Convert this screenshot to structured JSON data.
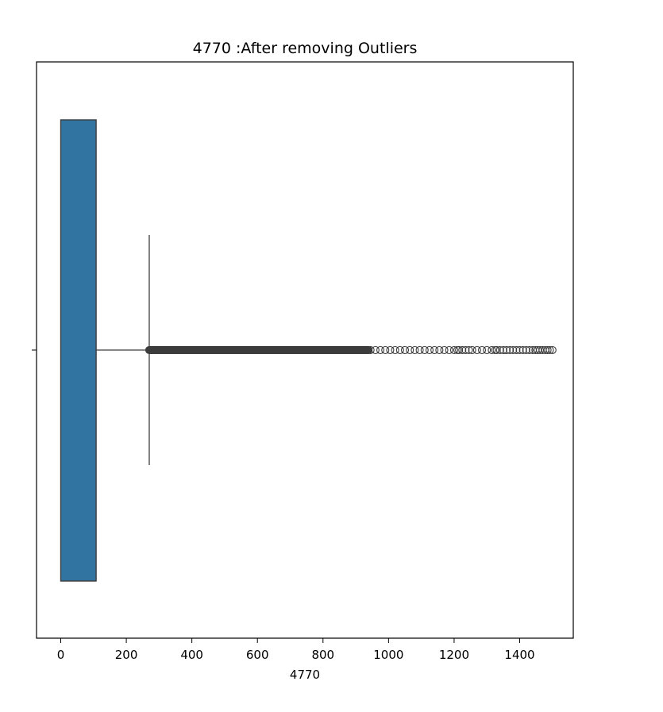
{
  "chart_data": {
    "type": "box",
    "orientation": "horizontal",
    "title": "4770 :After removing Outliers",
    "xlabel": "4770",
    "ylabel": "",
    "xlim": [
      -75,
      1575
    ],
    "xticks": [
      0,
      200,
      400,
      600,
      800,
      1000,
      1200,
      1400
    ],
    "grid": false,
    "box": {
      "min": 0,
      "q1": 0,
      "median": 0,
      "q3": 108,
      "whisker_high": 270,
      "color": "#3274a1"
    },
    "outliers": {
      "range": [
        270,
        1500
      ],
      "dense_until": 940,
      "sparse_values": [
        945,
        960,
        975,
        990,
        1005,
        1020,
        1035,
        1050,
        1065,
        1080,
        1095,
        1110,
        1125,
        1140,
        1155,
        1170,
        1185,
        1200,
        1210,
        1215,
        1225,
        1235,
        1245,
        1255,
        1270,
        1285,
        1300,
        1315,
        1325,
        1330,
        1340,
        1350,
        1360,
        1370,
        1380,
        1390,
        1400,
        1410,
        1420,
        1430,
        1440,
        1448,
        1455,
        1462,
        1470,
        1478,
        1485,
        1492,
        1500
      ]
    }
  }
}
